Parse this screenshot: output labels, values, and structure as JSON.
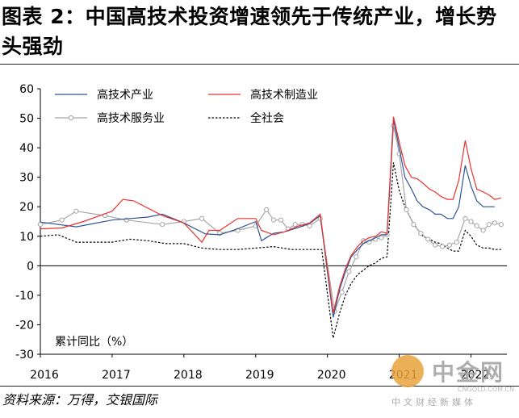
{
  "title": "图表 2：中国高技术投资增速领先于传统产业，增长势头强劲",
  "source": "资料来源：万得，交银国际",
  "watermark": {
    "name": "中金网",
    "site": "CNGOLD.COM.CN",
    "tagline": "中文财经新媒体"
  },
  "chart_data": {
    "type": "line",
    "y_unit_note": "累计同比（%）",
    "ylim": [
      -30,
      60
    ],
    "yticks": [
      -30,
      -20,
      -10,
      0,
      10,
      20,
      30,
      40,
      50,
      60
    ],
    "xlim": [
      2016,
      2022.5
    ],
    "xticks": [
      2016,
      2017,
      2018,
      2019,
      2020,
      2021,
      2022
    ],
    "xtick_labels": [
      "2016",
      "2017",
      "2018",
      "2019",
      "2020",
      "2021",
      "2022"
    ],
    "legend_position": "top-left",
    "series": [
      {
        "name": "高技术产业",
        "color": "#2f5597",
        "style": "solid",
        "points": [
          [
            2016.0,
            14.8
          ],
          [
            2016.5,
            13.2
          ],
          [
            2017.0,
            15.5
          ],
          [
            2017.5,
            16.5
          ],
          [
            2017.7,
            17.5
          ],
          [
            2018.0,
            14.5
          ],
          [
            2018.3,
            10.8
          ],
          [
            2018.5,
            10.5
          ],
          [
            2018.75,
            12.5
          ],
          [
            2019.0,
            15
          ],
          [
            2019.08,
            8.5
          ],
          [
            2019.25,
            11
          ],
          [
            2019.4,
            11.5
          ],
          [
            2019.6,
            13
          ],
          [
            2019.75,
            14.3
          ],
          [
            2019.9,
            17
          ],
          [
            2020.08,
            -17.5
          ],
          [
            2020.17,
            -8
          ],
          [
            2020.25,
            -2
          ],
          [
            2020.33,
            3
          ],
          [
            2020.42,
            5.5
          ],
          [
            2020.5,
            7.5
          ],
          [
            2020.58,
            8.5
          ],
          [
            2020.67,
            9.5
          ],
          [
            2020.75,
            10.5
          ],
          [
            2020.83,
            10.5
          ],
          [
            2020.92,
            49.5
          ],
          [
            2021.0,
            40
          ],
          [
            2021.08,
            30
          ],
          [
            2021.17,
            26
          ],
          [
            2021.25,
            22
          ],
          [
            2021.33,
            20
          ],
          [
            2021.42,
            19
          ],
          [
            2021.5,
            17.5
          ],
          [
            2021.58,
            17.5
          ],
          [
            2021.67,
            16
          ],
          [
            2021.75,
            16
          ],
          [
            2021.83,
            20
          ],
          [
            2021.92,
            34
          ],
          [
            2022.0,
            27
          ],
          [
            2022.08,
            22
          ],
          [
            2022.17,
            20
          ],
          [
            2022.25,
            20
          ],
          [
            2022.33,
            20
          ]
        ]
      },
      {
        "name": "高技术制造业",
        "color": "#e8322d",
        "style": "solid",
        "points": [
          [
            2016.0,
            12.5
          ],
          [
            2016.3,
            12.8
          ],
          [
            2016.6,
            15
          ],
          [
            2017.0,
            18.5
          ],
          [
            2017.15,
            22.5
          ],
          [
            2017.3,
            22
          ],
          [
            2017.5,
            19.5
          ],
          [
            2017.7,
            17
          ],
          [
            2018.0,
            14.5
          ],
          [
            2018.25,
            8
          ],
          [
            2018.35,
            12
          ],
          [
            2018.5,
            12
          ],
          [
            2018.75,
            16
          ],
          [
            2019.0,
            16
          ],
          [
            2019.08,
            12
          ],
          [
            2019.25,
            10.5
          ],
          [
            2019.4,
            11.5
          ],
          [
            2019.6,
            13.5
          ],
          [
            2019.75,
            14.5
          ],
          [
            2019.9,
            17.5
          ],
          [
            2020.08,
            -16
          ],
          [
            2020.17,
            -7
          ],
          [
            2020.25,
            -1
          ],
          [
            2020.33,
            3.5
          ],
          [
            2020.42,
            6.5
          ],
          [
            2020.5,
            8.5
          ],
          [
            2020.58,
            9.5
          ],
          [
            2020.67,
            10
          ],
          [
            2020.75,
            11.5
          ],
          [
            2020.83,
            11
          ],
          [
            2020.92,
            50.5
          ],
          [
            2021.0,
            42
          ],
          [
            2021.08,
            34
          ],
          [
            2021.17,
            30
          ],
          [
            2021.25,
            29.5
          ],
          [
            2021.33,
            28
          ],
          [
            2021.42,
            26
          ],
          [
            2021.5,
            25
          ],
          [
            2021.58,
            23.5
          ],
          [
            2021.67,
            22.5
          ],
          [
            2021.75,
            22.5
          ],
          [
            2021.83,
            29
          ],
          [
            2021.92,
            42.5
          ],
          [
            2022.0,
            33
          ],
          [
            2022.08,
            26
          ],
          [
            2022.17,
            25
          ],
          [
            2022.25,
            24
          ],
          [
            2022.33,
            22.5
          ],
          [
            2022.42,
            23
          ]
        ]
      },
      {
        "name": "高技术服务业",
        "color": "#a6a6a6",
        "style": "marker",
        "points": [
          [
            2016.0,
            14
          ],
          [
            2016.3,
            15.5
          ],
          [
            2016.5,
            18.5
          ],
          [
            2016.9,
            17
          ],
          [
            2017.2,
            15.5
          ],
          [
            2017.7,
            14
          ],
          [
            2018.0,
            15
          ],
          [
            2018.25,
            16
          ],
          [
            2018.5,
            11
          ],
          [
            2018.75,
            12
          ],
          [
            2019.0,
            13.5
          ],
          [
            2019.15,
            19
          ],
          [
            2019.25,
            15.5
          ],
          [
            2019.35,
            15.5
          ],
          [
            2019.45,
            12.5
          ],
          [
            2019.55,
            14
          ],
          [
            2019.65,
            14
          ],
          [
            2019.75,
            13.5
          ],
          [
            2019.9,
            16
          ],
          [
            2020.1,
            -15.5
          ],
          [
            2020.2,
            -9
          ],
          [
            2020.3,
            -2
          ],
          [
            2020.4,
            3
          ],
          [
            2020.5,
            8.5
          ],
          [
            2020.58,
            8
          ],
          [
            2020.67,
            9
          ],
          [
            2020.75,
            9.5
          ],
          [
            2020.83,
            10.5
          ],
          [
            2020.92,
            47.5
          ],
          [
            2021.0,
            38
          ],
          [
            2021.1,
            19
          ],
          [
            2021.2,
            14
          ],
          [
            2021.3,
            11
          ],
          [
            2021.4,
            9
          ],
          [
            2021.5,
            7
          ],
          [
            2021.6,
            6.5
          ],
          [
            2021.7,
            7
          ],
          [
            2021.8,
            8
          ],
          [
            2021.92,
            16
          ],
          [
            2022.0,
            15
          ],
          [
            2022.08,
            13.5
          ],
          [
            2022.17,
            12
          ],
          [
            2022.25,
            14
          ],
          [
            2022.33,
            14.5
          ],
          [
            2022.42,
            14
          ]
        ]
      },
      {
        "name": "全社会",
        "color": "#000000",
        "style": "dashed",
        "points": [
          [
            2016.0,
            10
          ],
          [
            2016.25,
            10.5
          ],
          [
            2016.5,
            8
          ],
          [
            2016.75,
            8
          ],
          [
            2017.0,
            8
          ],
          [
            2017.25,
            9
          ],
          [
            2017.5,
            8.5
          ],
          [
            2017.75,
            7.5
          ],
          [
            2018.0,
            7.5
          ],
          [
            2018.25,
            6
          ],
          [
            2018.5,
            5.5
          ],
          [
            2018.75,
            5.5
          ],
          [
            2019.0,
            6
          ],
          [
            2019.25,
            6.5
          ],
          [
            2019.5,
            5.5
          ],
          [
            2019.75,
            5.5
          ],
          [
            2019.92,
            5.5
          ],
          [
            2020.08,
            -24.5
          ],
          [
            2020.17,
            -16
          ],
          [
            2020.25,
            -10
          ],
          [
            2020.33,
            -6
          ],
          [
            2020.42,
            -3
          ],
          [
            2020.5,
            -1.5
          ],
          [
            2020.58,
            0
          ],
          [
            2020.67,
            1
          ],
          [
            2020.75,
            2.5
          ],
          [
            2020.83,
            3
          ],
          [
            2020.92,
            35
          ],
          [
            2021.0,
            25.5
          ],
          [
            2021.08,
            20
          ],
          [
            2021.17,
            15.5
          ],
          [
            2021.25,
            12.5
          ],
          [
            2021.33,
            10
          ],
          [
            2021.42,
            9
          ],
          [
            2021.5,
            8
          ],
          [
            2021.58,
            7.5
          ],
          [
            2021.67,
            6
          ],
          [
            2021.75,
            5
          ],
          [
            2021.83,
            5
          ],
          [
            2021.92,
            12
          ],
          [
            2022.0,
            10
          ],
          [
            2022.08,
            7
          ],
          [
            2022.17,
            6
          ],
          [
            2022.25,
            6
          ],
          [
            2022.33,
            5.5
          ],
          [
            2022.42,
            5.5
          ]
        ]
      }
    ]
  }
}
